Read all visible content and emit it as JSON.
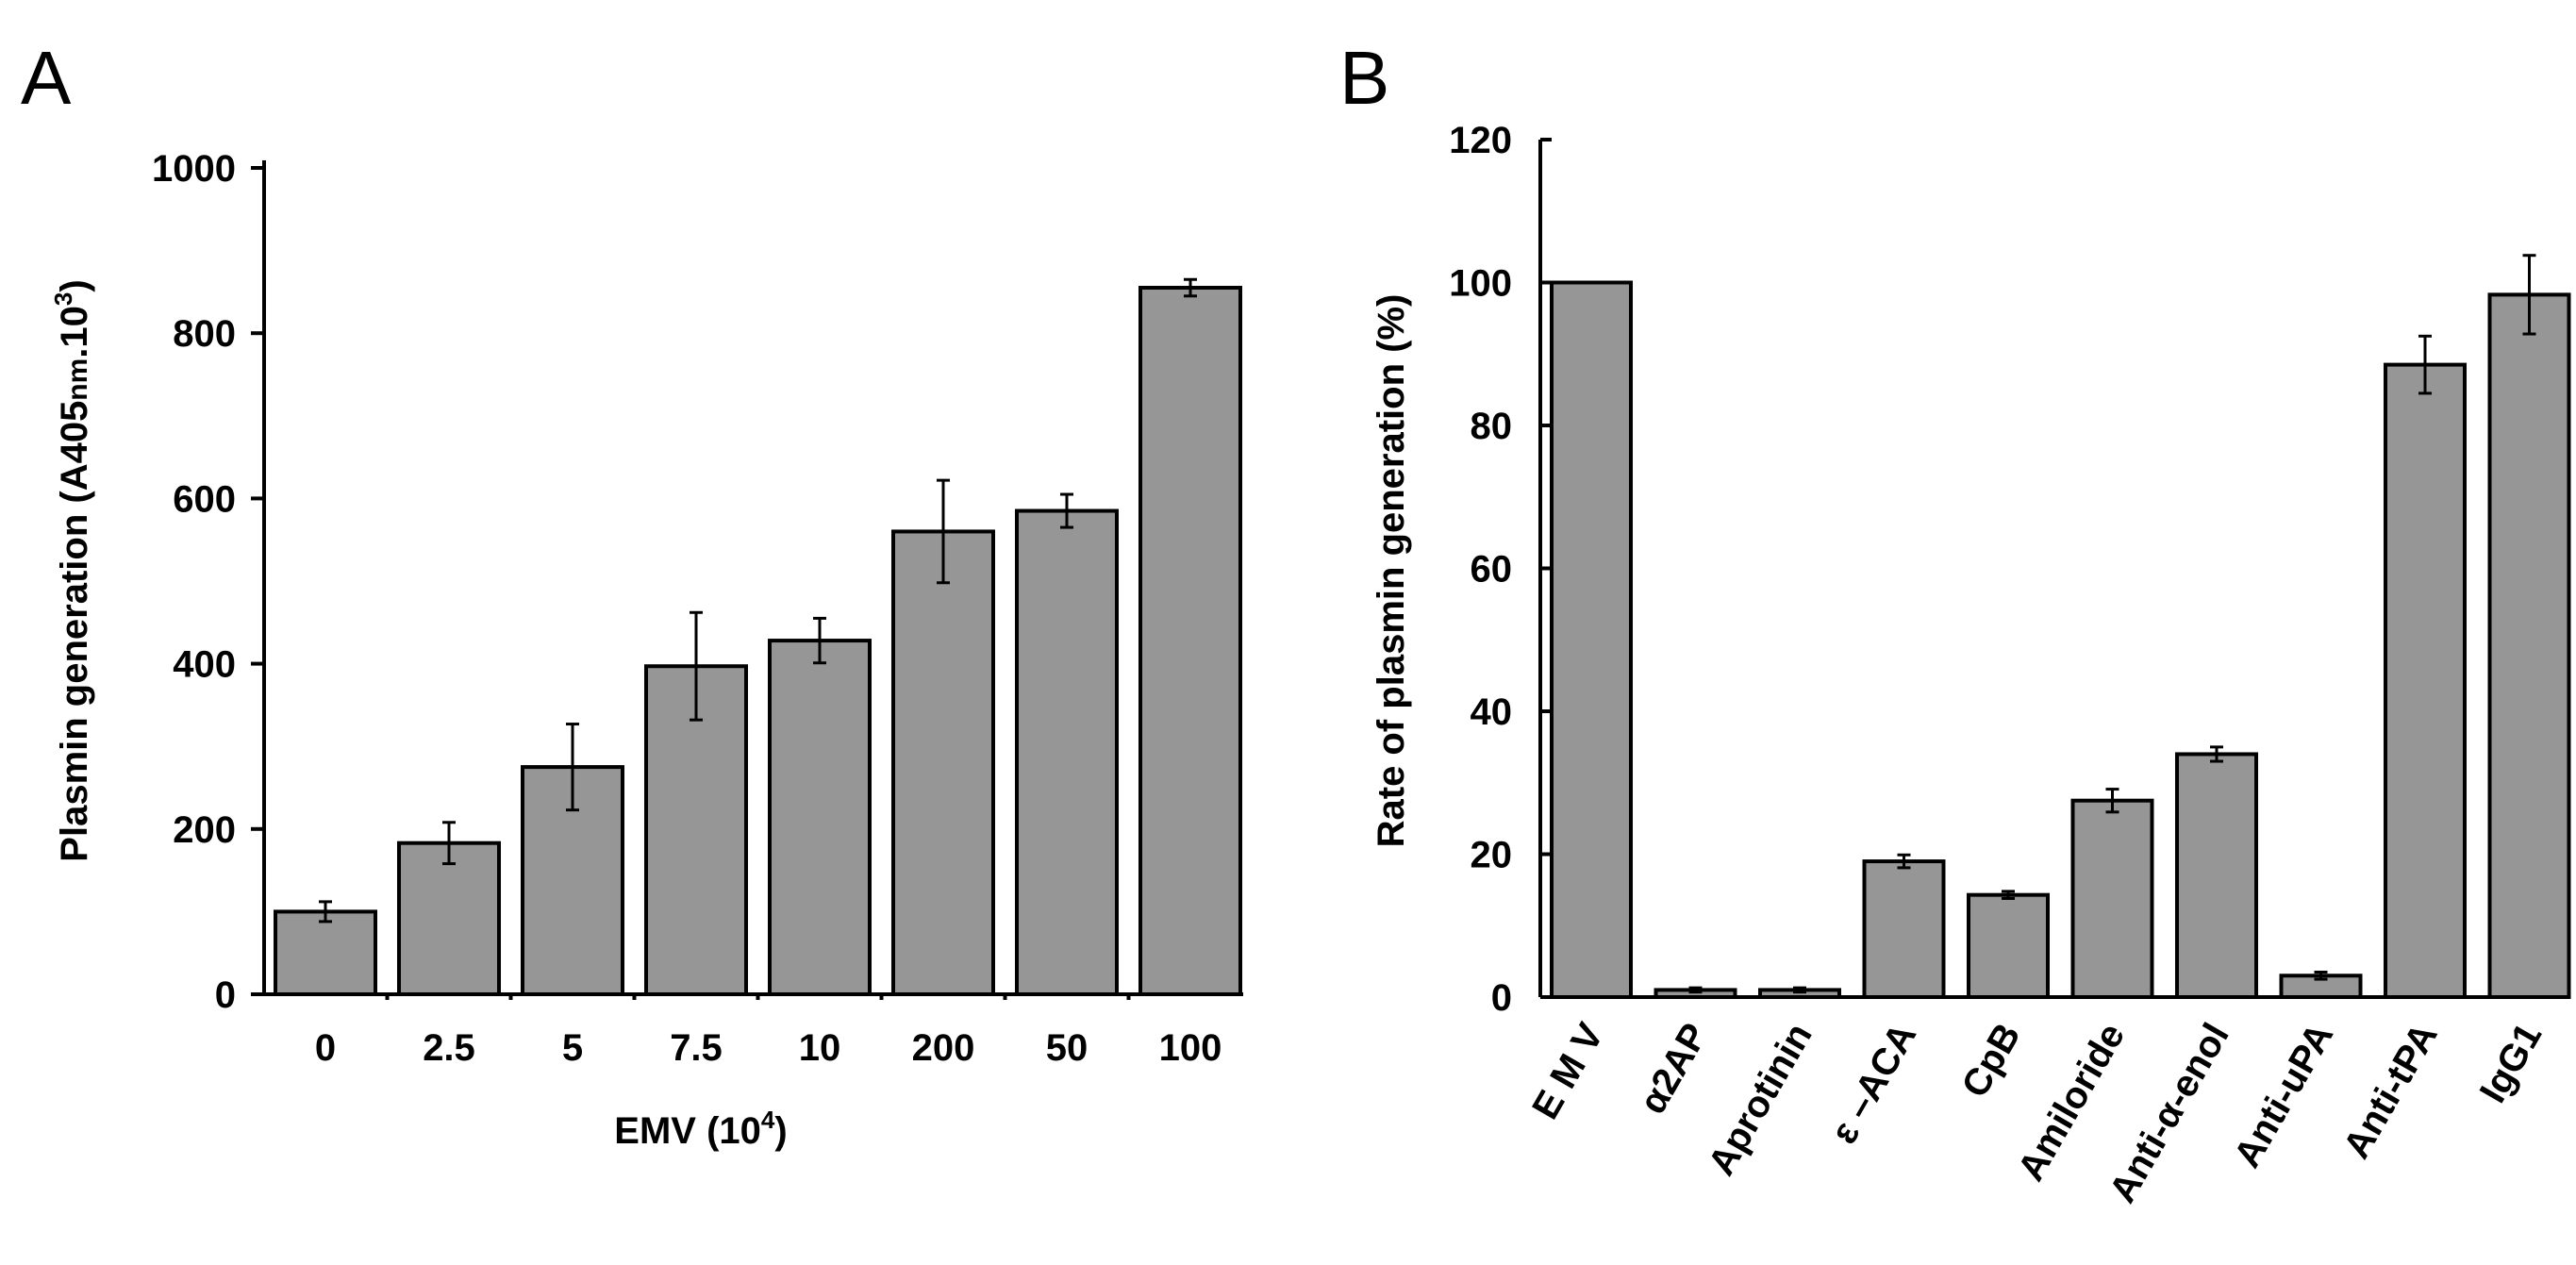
{
  "panels": [
    {
      "label": "A"
    },
    {
      "label": "B"
    }
  ],
  "chart_data": [
    {
      "type": "bar",
      "panel": "A",
      "title": "",
      "xlabel_main": "EMV (10",
      "xlabel_sup": "4",
      "xlabel_end": ")",
      "ylabel_main": "Plasmin generation (A405",
      "ylabel_sub": "nm",
      "ylabel_mid": ".10",
      "ylabel_sup": "3",
      "ylabel_end": ")",
      "categories": [
        "0",
        "2.5",
        "5",
        "7.5",
        "10",
        "200",
        "50",
        "100"
      ],
      "values": [
        100,
        183,
        275,
        397,
        428,
        560,
        585,
        855
      ],
      "errors": [
        12,
        25,
        52,
        65,
        27,
        62,
        20,
        10
      ],
      "ylim": [
        0,
        1000
      ],
      "yticks": [
        0,
        200,
        400,
        600,
        800,
        1000
      ],
      "ytick_labels": [
        "0",
        "200",
        "400",
        "600",
        "800",
        "1000"
      ]
    },
    {
      "type": "bar",
      "panel": "B",
      "title": "",
      "ylabel": "Rate of plasmin generation (%)",
      "categories": [
        "E M V",
        "α2AP",
        "Aprotinin",
        "ε –ACA",
        "CpB",
        "Amiloride",
        "Anti-α-enol",
        "Anti-uPA",
        "Anti-tPA",
        "IgG1"
      ],
      "values": [
        100,
        1,
        1,
        19,
        14.3,
        27.5,
        34,
        3,
        88.5,
        98.3
      ],
      "errors": [
        0,
        0.3,
        0.3,
        0.9,
        0.5,
        1.6,
        1.0,
        0.5,
        4.0,
        5.5
      ],
      "ylim": [
        0,
        120
      ],
      "yticks": [
        0,
        20,
        40,
        60,
        80,
        100,
        120
      ],
      "ytick_labels": [
        "0",
        "20",
        "40",
        "60",
        "80",
        "100",
        "120"
      ]
    }
  ]
}
